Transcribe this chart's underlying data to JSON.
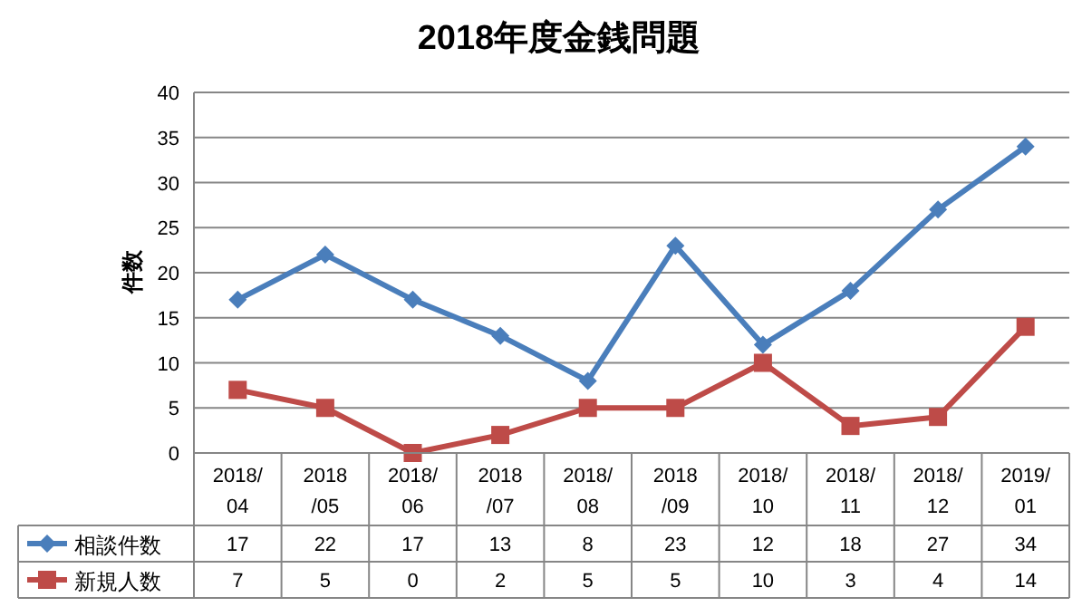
{
  "chart_data": {
    "type": "line",
    "title": "2018年度金銭問題",
    "ylabel": "件数",
    "categories": [
      "2018/\n04",
      "2018\n/05",
      "2018/\n06",
      "2018\n/07",
      "2018/\n08",
      "2018\n/09",
      "2018/\n10",
      "2018/\n11",
      "2018/\n12",
      "2019/\n01"
    ],
    "series": [
      {
        "name": "相談件数",
        "color": "#4a7ebb",
        "marker": "diamond",
        "values": [
          17,
          22,
          17,
          13,
          8,
          23,
          12,
          18,
          27,
          34
        ]
      },
      {
        "name": "新規人数",
        "color": "#be4b48",
        "marker": "square",
        "values": [
          7,
          5,
          0,
          2,
          5,
          5,
          10,
          3,
          4,
          14
        ]
      }
    ],
    "ylim": [
      0,
      40
    ],
    "yticks": [
      0,
      5,
      10,
      15,
      20,
      25,
      30,
      35,
      40
    ],
    "grid": "y",
    "legend": "bottom",
    "data_labels": true,
    "line_style": "solid"
  }
}
